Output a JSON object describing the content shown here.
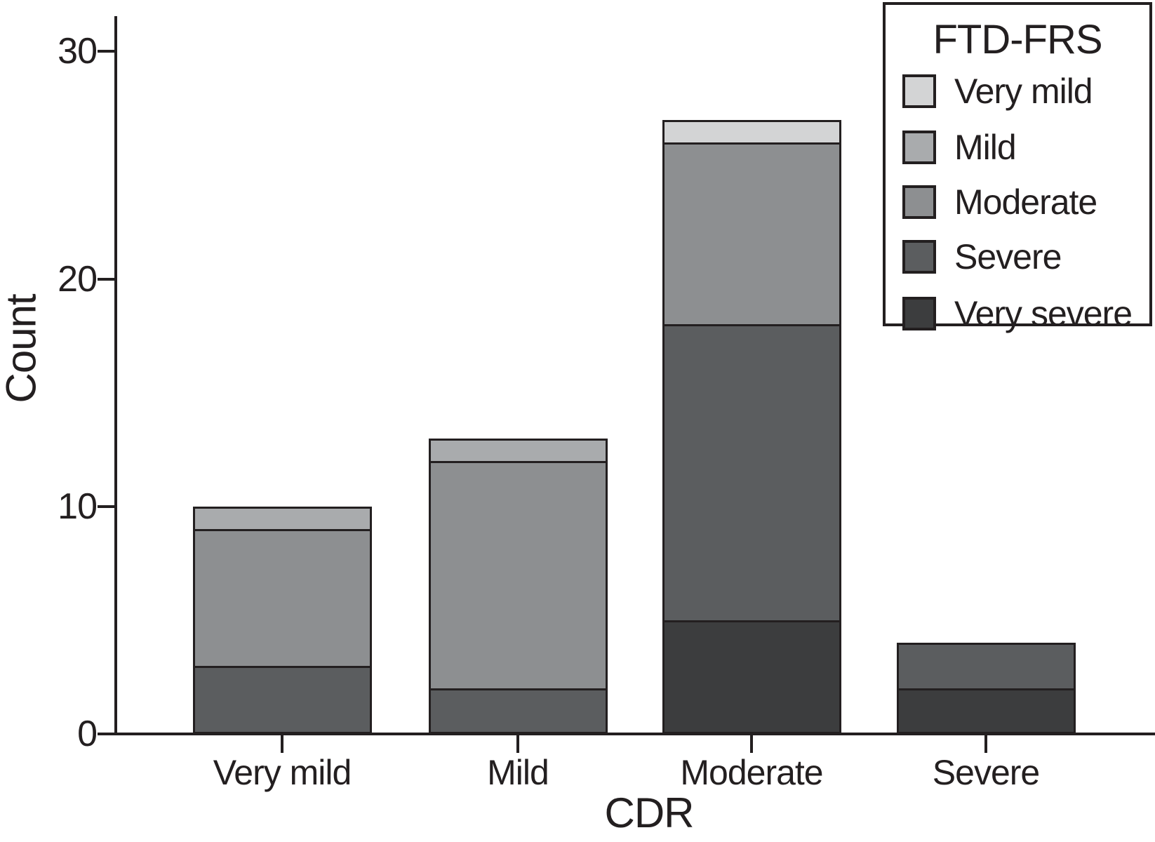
{
  "chart_data": {
    "type": "bar",
    "stacked": true,
    "xlabel": "CDR",
    "ylabel": "Count",
    "categories": [
      "Very mild",
      "Mild",
      "Moderate",
      "Severe"
    ],
    "series": [
      {
        "name": "Very mild",
        "color": "#d3d4d5",
        "values": [
          0,
          0,
          1,
          0
        ]
      },
      {
        "name": "Mild",
        "color": "#a9abad",
        "values": [
          1,
          1,
          0,
          0
        ]
      },
      {
        "name": "Moderate",
        "color": "#8d8f91",
        "values": [
          6,
          10,
          8,
          0
        ]
      },
      {
        "name": "Severe",
        "color": "#5b5d5f",
        "values": [
          3,
          2,
          13,
          2
        ]
      },
      {
        "name": "Very severe",
        "color": "#3c3d3e",
        "values": [
          0,
          0,
          5,
          2
        ]
      }
    ],
    "stack_order_bottom_to_top": [
      "Very severe",
      "Severe",
      "Moderate",
      "Mild",
      "Very mild"
    ],
    "totals": [
      10,
      13,
      27,
      4
    ],
    "yticks": [
      0,
      10,
      20,
      30
    ],
    "ylim": [
      0,
      31.5
    ],
    "grid": false,
    "legend": {
      "title": "FTD-FRS",
      "position": "top-right"
    },
    "colors": {
      "axis": "#231f20",
      "background": "#ffffff"
    }
  }
}
